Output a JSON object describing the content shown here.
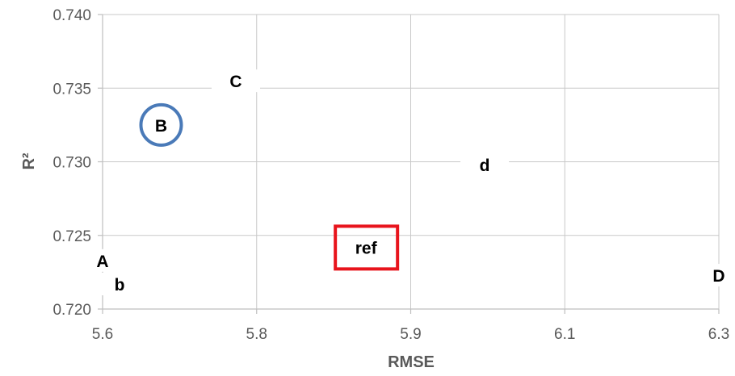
{
  "chart_data": {
    "type": "scatter",
    "title": "",
    "xlabel": "RMSE",
    "ylabel": "R²",
    "xlim": [
      5.6,
      6.3
    ],
    "ylim": [
      0.72,
      0.74
    ],
    "xticks": [
      5.6,
      5.8,
      5.9,
      6.1,
      6.3
    ],
    "xtick_labels": [
      "5.6",
      "5.8",
      "5.9",
      "6.1",
      "6.3"
    ],
    "yticks": [
      0.72,
      0.725,
      0.73,
      0.735,
      0.74
    ],
    "ytick_labels": [
      "0.720",
      "0.725",
      "0.730",
      "0.735",
      "0.740"
    ],
    "grid": "major",
    "legend": "none",
    "points": [
      {
        "label": "A",
        "x": 5.6,
        "y": 0.7233
      },
      {
        "label": "b",
        "x": 5.622,
        "y": 0.7217
      },
      {
        "label": "B",
        "x": 5.676,
        "y": 0.7325,
        "marker": "circle",
        "marker_color": "#4a7ab8"
      },
      {
        "label": "C",
        "x": 5.773,
        "y": 0.7355
      },
      {
        "label": "d",
        "x": 5.996,
        "y": 0.7298
      },
      {
        "label": "ref",
        "x": 5.871,
        "y": 0.7242,
        "marker": "square",
        "marker_color": "#e8141c"
      },
      {
        "label": "D",
        "x": 6.3,
        "y": 0.7223
      }
    ],
    "colors": {
      "grid": "#c8c8c8",
      "axis": "#bfbfbf",
      "text": "#595959"
    }
  }
}
